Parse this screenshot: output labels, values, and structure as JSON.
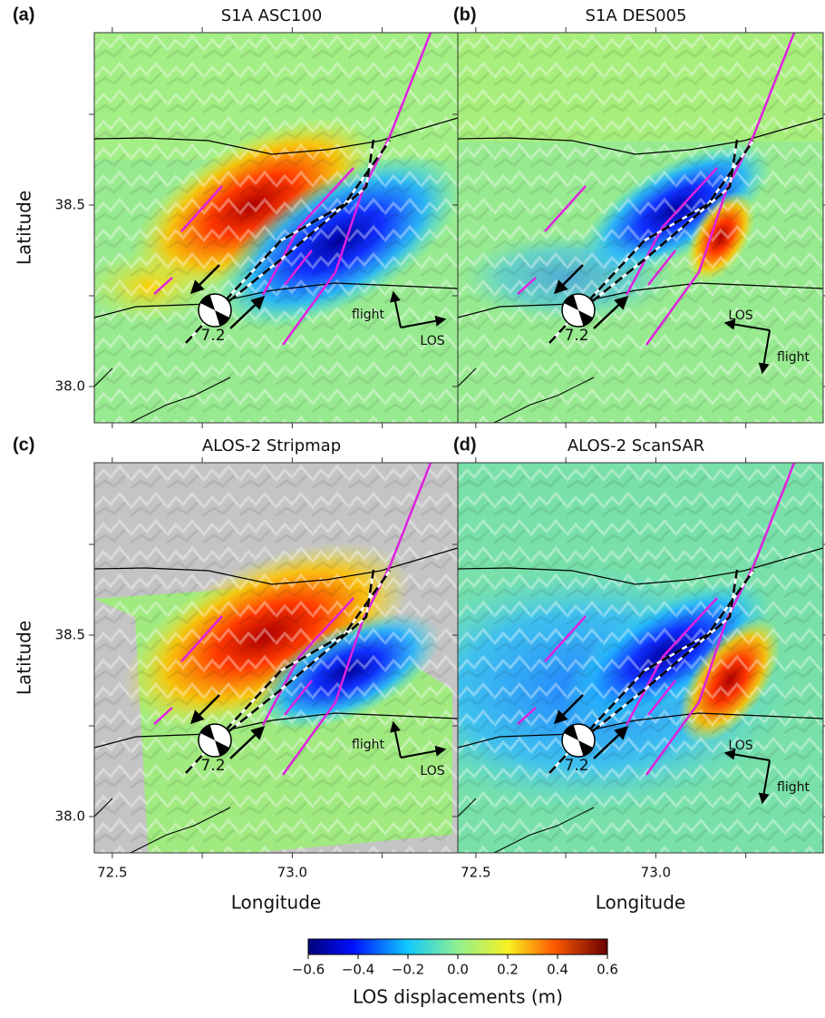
{
  "panels": [
    {
      "label": "(a)",
      "title": "S1A ASC100",
      "magnitude": "7.2",
      "flight": "flight",
      "los": "LOS"
    },
    {
      "label": "(b)",
      "title": "S1A DES005",
      "magnitude": "7.2",
      "flight": "flight",
      "los": "LOS"
    },
    {
      "label": "(c)",
      "title": "ALOS-2 Stripmap",
      "magnitude": "7.2",
      "flight": "flight",
      "los": "LOS"
    },
    {
      "label": "(d)",
      "title": "ALOS-2 ScanSAR",
      "magnitude": "7.2",
      "flight": "flight",
      "los": "LOS"
    }
  ],
  "axes": {
    "xlabel": "Longitude",
    "ylabel": "Latitude",
    "xlim": [
      72.45,
      73.46
    ],
    "ylim": [
      37.9,
      38.975
    ],
    "xticks": [
      72.5,
      {
        "value": 73,
        "label": "73.0"
      }
    ],
    "yticks": [
      {
        "value": 38,
        "label": "38.0"
      },
      38.5
    ],
    "minor_xticks": [
      72.75,
      73.25
    ],
    "minor_yticks": [
      38.25,
      38.75
    ]
  },
  "colorbar": {
    "label": "LOS displacements (m)",
    "lim": [
      -0.6,
      0.6
    ],
    "ticks": [
      {
        "value": -0.6,
        "label": "−0.6"
      },
      {
        "value": -0.4,
        "label": "−0.4"
      },
      {
        "value": -0.2,
        "label": "−0.2"
      },
      {
        "value": 0,
        "label": "0.0"
      },
      0.2,
      0.4,
      0.6
    ]
  }
}
